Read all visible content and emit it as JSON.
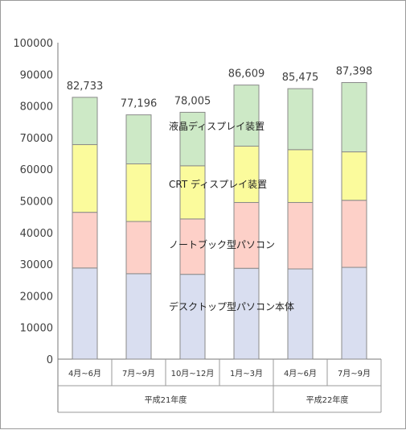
{
  "chart_data": {
    "type": "bar",
    "stacked": true,
    "categories": [
      "4月~6月",
      "7月~9月",
      "10月~12月",
      "1月~3月",
      "4月~6月",
      "7月~9月"
    ],
    "groups": [
      {
        "label": "平成21年度",
        "span": 4
      },
      {
        "label": "平成22年度",
        "span": 2
      }
    ],
    "series": [
      {
        "name": "デスクトップ型パソコン本体",
        "color": "#d9def0",
        "values": [
          28800,
          27000,
          26800,
          28700,
          28500,
          29000
        ]
      },
      {
        "name": "ノートブック型パソコン",
        "color": "#fdd0c8",
        "values": [
          17600,
          16500,
          17500,
          20800,
          21000,
          21200
        ]
      },
      {
        "name": "CRT ディスプレイ装置",
        "color": "#fbfb9c",
        "values": [
          21400,
          18200,
          16800,
          17800,
          16700,
          15300
        ]
      },
      {
        "name": "液晶ディスプレイ装置",
        "color": "#cde9c6",
        "values": [
          14933,
          15496,
          16905,
          19309,
          19275,
          21898
        ]
      }
    ],
    "totals": [
      "82,733",
      "77,196",
      "78,005",
      "86,609",
      "85,475",
      "87,398"
    ],
    "ylim": [
      0,
      100000
    ],
    "yticks": [
      "0",
      "10000",
      "20000",
      "30000",
      "40000",
      "50000",
      "60000",
      "70000",
      "80000",
      "90000",
      "100000"
    ],
    "grid": false,
    "legend": "inline labels on bars"
  }
}
